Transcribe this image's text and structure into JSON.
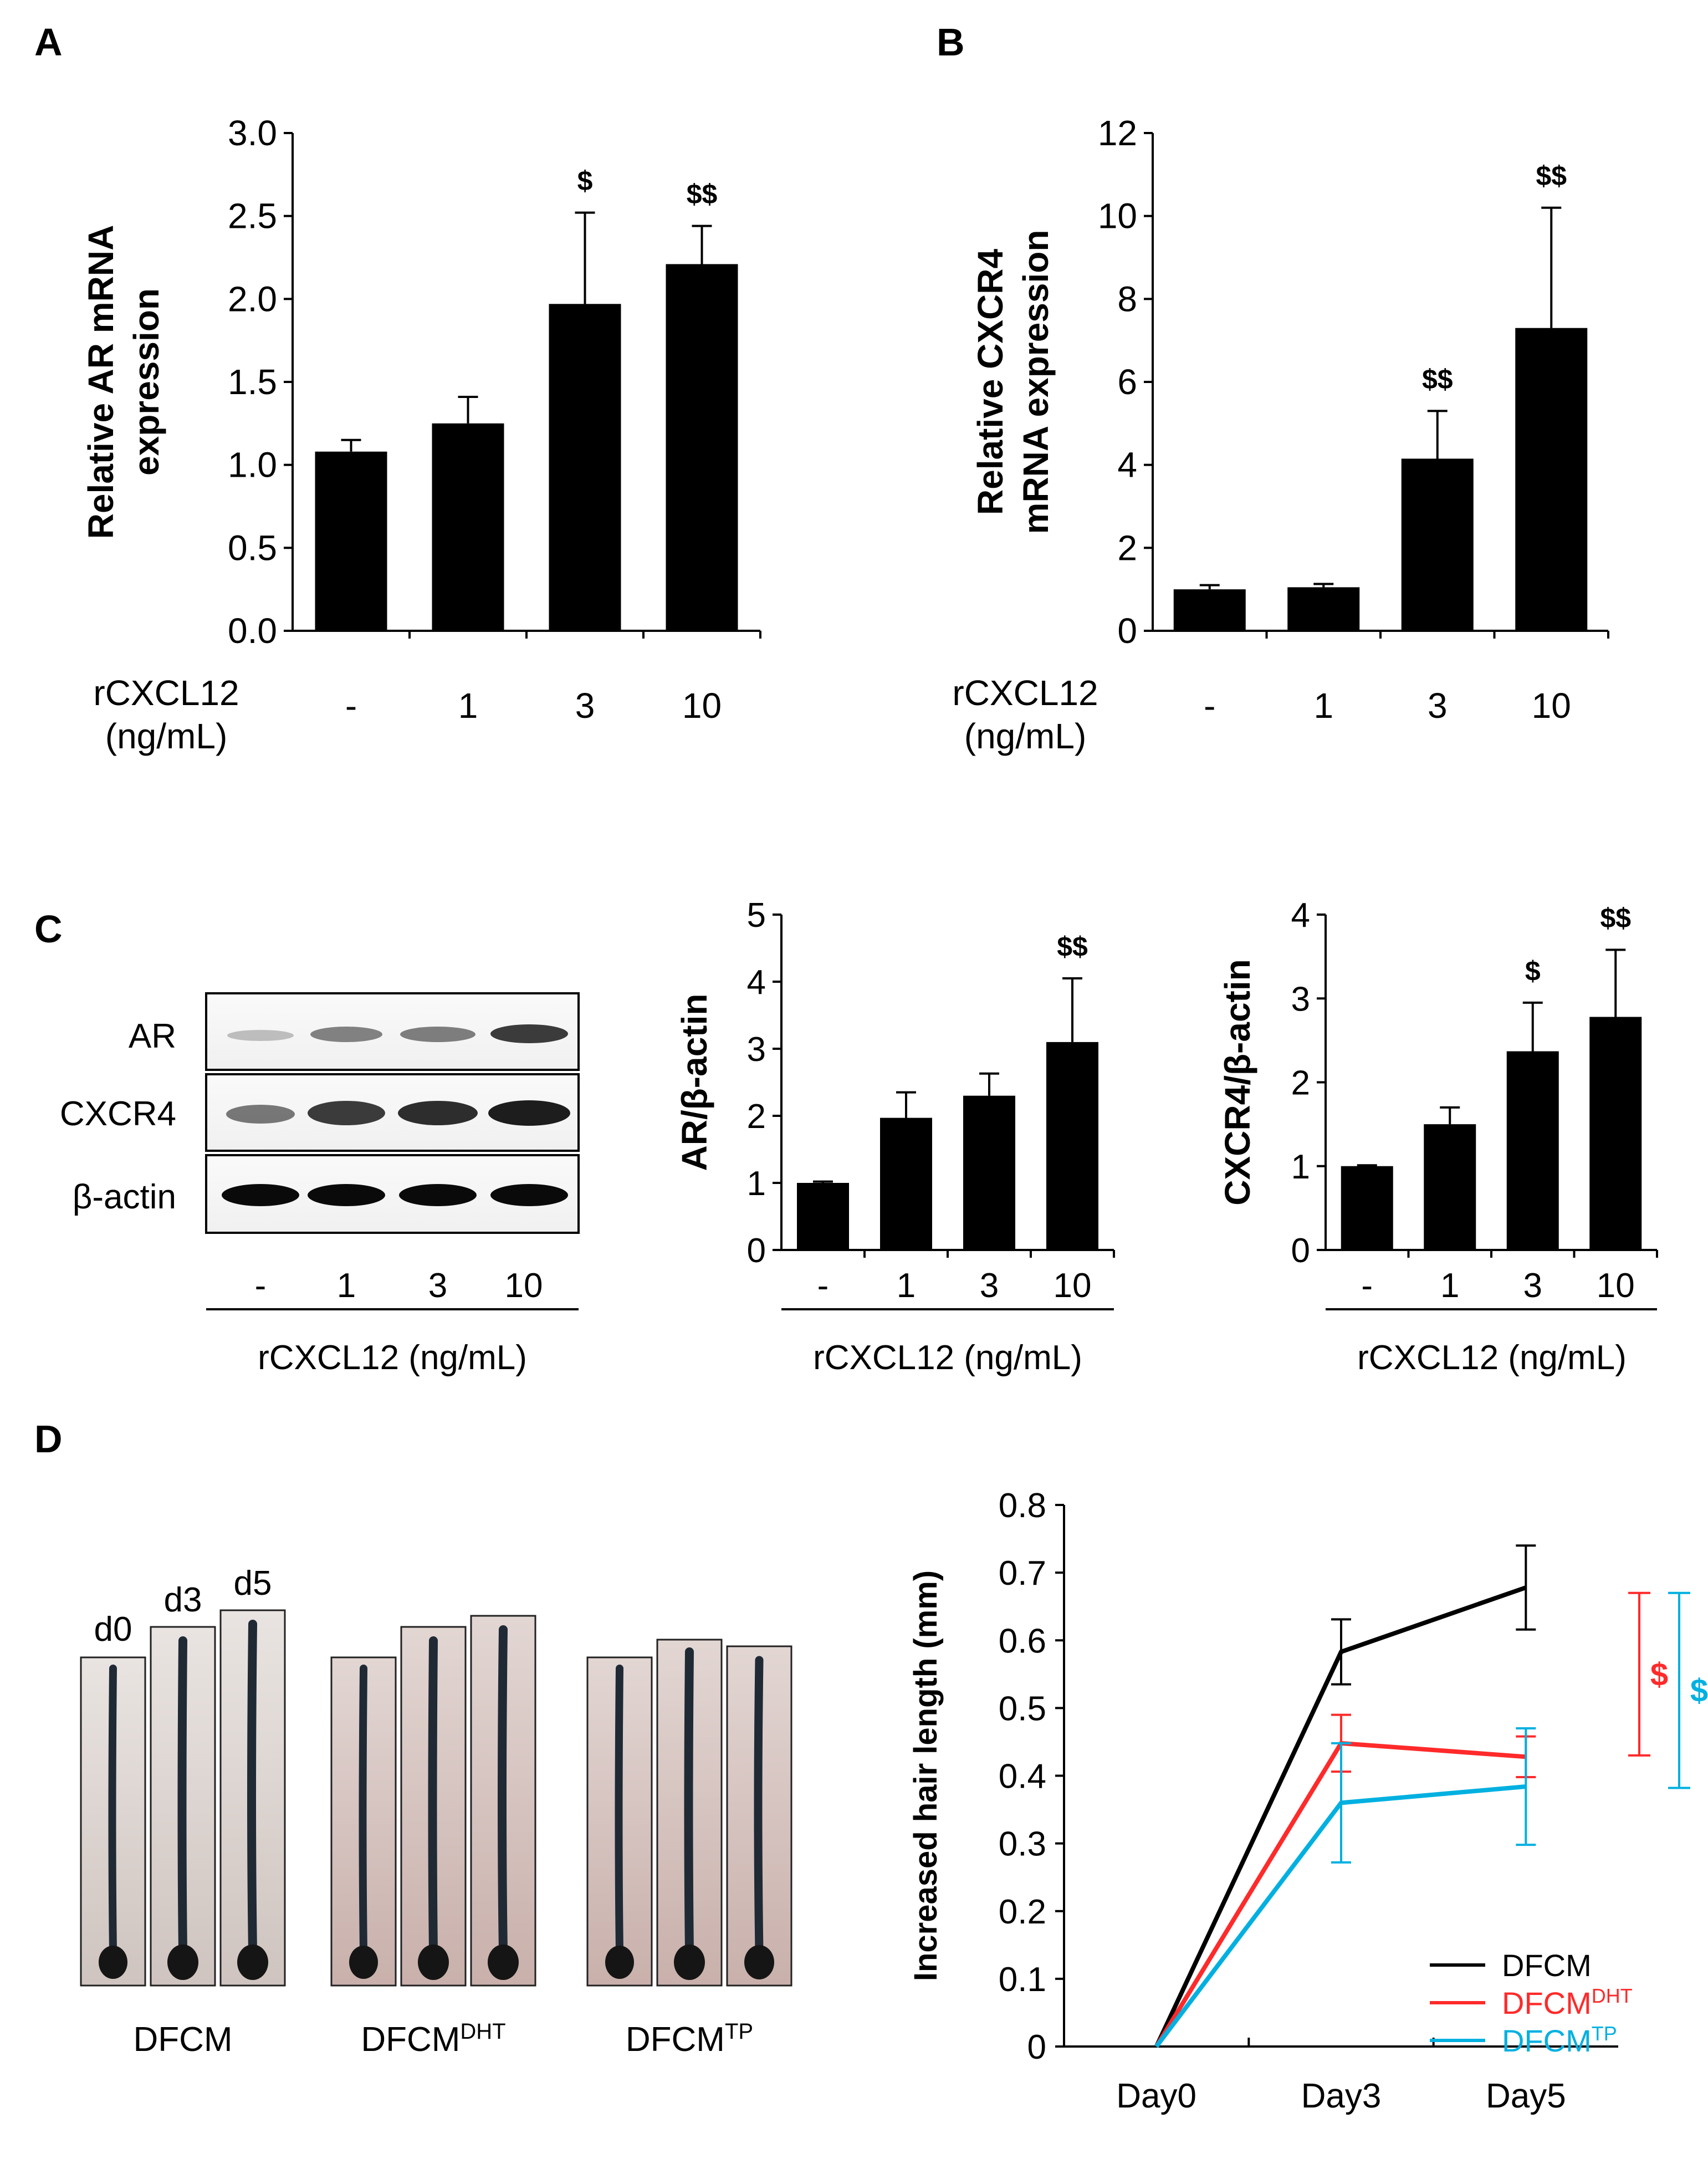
{
  "panels": {
    "A": "A",
    "B": "B",
    "C": "C",
    "D": "D"
  },
  "blot": {
    "rows": [
      "AR",
      "CXCR4",
      "β-actin"
    ],
    "lanes": [
      "-",
      "1",
      "3",
      "10"
    ],
    "xlabel": "rCXCL12 (ng/mL)"
  },
  "hair_images": {
    "day_labels": [
      "d0",
      "d3",
      "d5"
    ],
    "groups": [
      {
        "main": "DFCM",
        "sup": ""
      },
      {
        "main": "DFCM",
        "sup": "DHT"
      },
      {
        "main": "DFCM",
        "sup": "TP"
      }
    ]
  },
  "chart_data": [
    {
      "id": "A",
      "type": "bar",
      "categories": [
        "-",
        "1",
        "3",
        "10"
      ],
      "values": [
        1.08,
        1.25,
        1.97,
        2.21
      ],
      "errors": [
        0.07,
        0.16,
        0.55,
        0.23
      ],
      "significance": [
        "",
        "",
        "$",
        "$$"
      ],
      "ylabel_lines": [
        "Relative AR mRNA",
        "expression"
      ],
      "xlabel_lines": [
        "rCXCL12",
        "(ng/mL)"
      ],
      "ylim": [
        0,
        3.0
      ],
      "yticks": [
        "0.0",
        "0.5",
        "1.0",
        "1.5",
        "2.0",
        "2.5",
        "3.0"
      ]
    },
    {
      "id": "B",
      "type": "bar",
      "categories": [
        "-",
        "1",
        "3",
        "10"
      ],
      "values": [
        1.0,
        1.05,
        4.15,
        7.3
      ],
      "errors": [
        0.1,
        0.08,
        1.15,
        2.9
      ],
      "significance": [
        "",
        "",
        "$$",
        "$$"
      ],
      "ylabel_lines": [
        "Relative CXCR4",
        "mRNA expression"
      ],
      "xlabel_lines": [
        "rCXCL12",
        "(ng/mL)"
      ],
      "ylim": [
        0,
        12
      ],
      "yticks": [
        "0",
        "2",
        "4",
        "6",
        "8",
        "10",
        "12"
      ]
    },
    {
      "id": "C-AR",
      "type": "bar",
      "categories": [
        "-",
        "1",
        "3",
        "10"
      ],
      "values": [
        1.0,
        1.97,
        2.3,
        3.1
      ],
      "errors": [
        0.02,
        0.38,
        0.33,
        0.95
      ],
      "significance": [
        "",
        "",
        "",
        "$$"
      ],
      "ylabel_lines": [
        "AR/β-actin"
      ],
      "xlabel_lines": [
        "rCXCL12 (ng/mL)"
      ],
      "ylim": [
        0,
        5
      ],
      "yticks": [
        "0",
        "1",
        "2",
        "3",
        "4",
        "5"
      ]
    },
    {
      "id": "C-CXCR4",
      "type": "bar",
      "categories": [
        "-",
        "1",
        "3",
        "10"
      ],
      "values": [
        1.0,
        1.5,
        2.37,
        2.78
      ],
      "errors": [
        0.01,
        0.2,
        0.58,
        0.8
      ],
      "significance": [
        "",
        "",
        "$",
        "$$"
      ],
      "ylabel_lines": [
        "CXCR4/β-actin"
      ],
      "xlabel_lines": [
        "rCXCL12 (ng/mL)"
      ],
      "ylim": [
        0,
        4
      ],
      "yticks": [
        "0",
        "1",
        "2",
        "3",
        "4"
      ]
    },
    {
      "id": "D",
      "type": "line",
      "categories": [
        "Day0",
        "Day3",
        "Day5"
      ],
      "ylabel": "Increased hair length (mm)",
      "ylim": [
        0,
        0.8
      ],
      "yticks": [
        "0",
        "0.1",
        "0.2",
        "0.3",
        "0.4",
        "0.5",
        "0.6",
        "0.7",
        "0.8"
      ],
      "series": [
        {
          "main": "DFCM",
          "sup": "",
          "color": "#000000",
          "values": [
            0,
            0.583,
            0.678
          ],
          "errors": [
            0,
            0.048,
            0.062
          ]
        },
        {
          "main": "DFCM",
          "sup": "DHT",
          "color": "#ff2a2a",
          "values": [
            0,
            0.448,
            0.428
          ],
          "errors": [
            0,
            0.042,
            0.03
          ]
        },
        {
          "main": "DFCM",
          "sup": "TP",
          "color": "#00b0e0",
          "values": [
            0,
            0.36,
            0.384
          ],
          "errors": [
            0,
            0.088,
            0.086
          ]
        }
      ],
      "comparisons": [
        {
          "label": "$",
          "color": "#ff2a2a",
          "from": 0.43,
          "to": 0.67
        },
        {
          "label": "$",
          "color": "#00b0e0",
          "from": 0.382,
          "to": 0.67
        }
      ],
      "legend_position": "bottom-right"
    }
  ]
}
